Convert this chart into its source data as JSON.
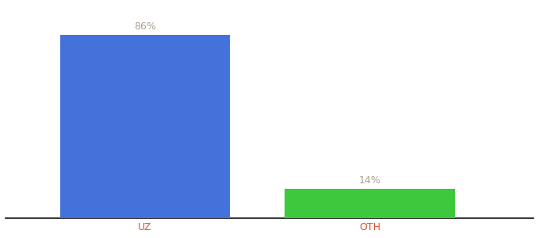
{
  "categories": [
    "UZ",
    "OTH"
  ],
  "values": [
    86,
    14
  ],
  "bar_colors": [
    "#4472db",
    "#3ec83e"
  ],
  "label_values": [
    "86%",
    "14%"
  ],
  "label_color": "#b0a090",
  "xlabel_color": "#e05030",
  "background_color": "#ffffff",
  "bar_width": 0.28,
  "ylim": [
    0,
    100
  ],
  "figsize": [
    6.8,
    3.0
  ],
  "dpi": 100,
  "x_positions": [
    0.28,
    0.65
  ]
}
